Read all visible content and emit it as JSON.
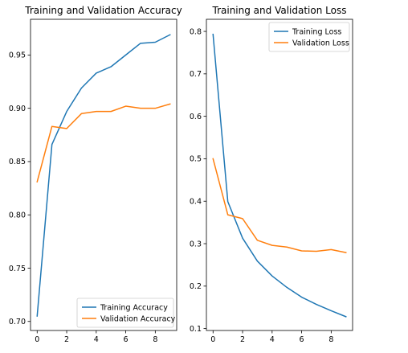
{
  "chart_data": [
    {
      "type": "line",
      "title": "Training and Validation Accuracy",
      "xlabel": "",
      "ylabel": "",
      "x": [
        0,
        1,
        2,
        3,
        4,
        5,
        6,
        7,
        8,
        9
      ],
      "xlim": [
        -0.45,
        9.45
      ],
      "ylim": [
        0.6915,
        0.9835
      ],
      "xticks": [
        0,
        2,
        4,
        6,
        8
      ],
      "yticks": [
        0.7,
        0.75,
        0.8,
        0.85,
        0.9,
        0.95
      ],
      "ytick_labels": [
        "0.70",
        "0.75",
        "0.80",
        "0.85",
        "0.90",
        "0.95"
      ],
      "legend_position": "lower-right",
      "grid": false,
      "series": [
        {
          "name": "Training Accuracy",
          "color": "#1f77b4",
          "values": [
            0.705,
            0.866,
            0.897,
            0.919,
            0.933,
            0.939,
            0.95,
            0.961,
            0.962,
            0.969
          ]
        },
        {
          "name": "Validation Accuracy",
          "color": "#ff7f0e",
          "values": [
            0.831,
            0.883,
            0.881,
            0.895,
            0.897,
            0.897,
            0.902,
            0.9,
            0.9,
            0.904
          ]
        }
      ]
    },
    {
      "type": "line",
      "title": "Training and Validation Loss",
      "xlabel": "",
      "ylabel": "",
      "x": [
        0,
        1,
        2,
        3,
        4,
        5,
        6,
        7,
        8,
        9
      ],
      "xlim": [
        -0.45,
        9.45
      ],
      "ylim": [
        0.0955,
        0.8285
      ],
      "xticks": [
        0,
        2,
        4,
        6,
        8
      ],
      "yticks": [
        0.1,
        0.2,
        0.3,
        0.4,
        0.5,
        0.6,
        0.7,
        0.8
      ],
      "ytick_labels": [
        "0.1",
        "0.2",
        "0.3",
        "0.4",
        "0.5",
        "0.6",
        "0.7",
        "0.8"
      ],
      "legend_position": "upper-right",
      "grid": false,
      "series": [
        {
          "name": "Training Loss",
          "color": "#1f77b4",
          "values": [
            0.793,
            0.399,
            0.313,
            0.259,
            0.224,
            0.197,
            0.174,
            0.157,
            0.142,
            0.128
          ]
        },
        {
          "name": "Validation Loss",
          "color": "#ff7f0e",
          "values": [
            0.5,
            0.368,
            0.359,
            0.308,
            0.296,
            0.292,
            0.283,
            0.282,
            0.286,
            0.279
          ]
        }
      ]
    }
  ]
}
